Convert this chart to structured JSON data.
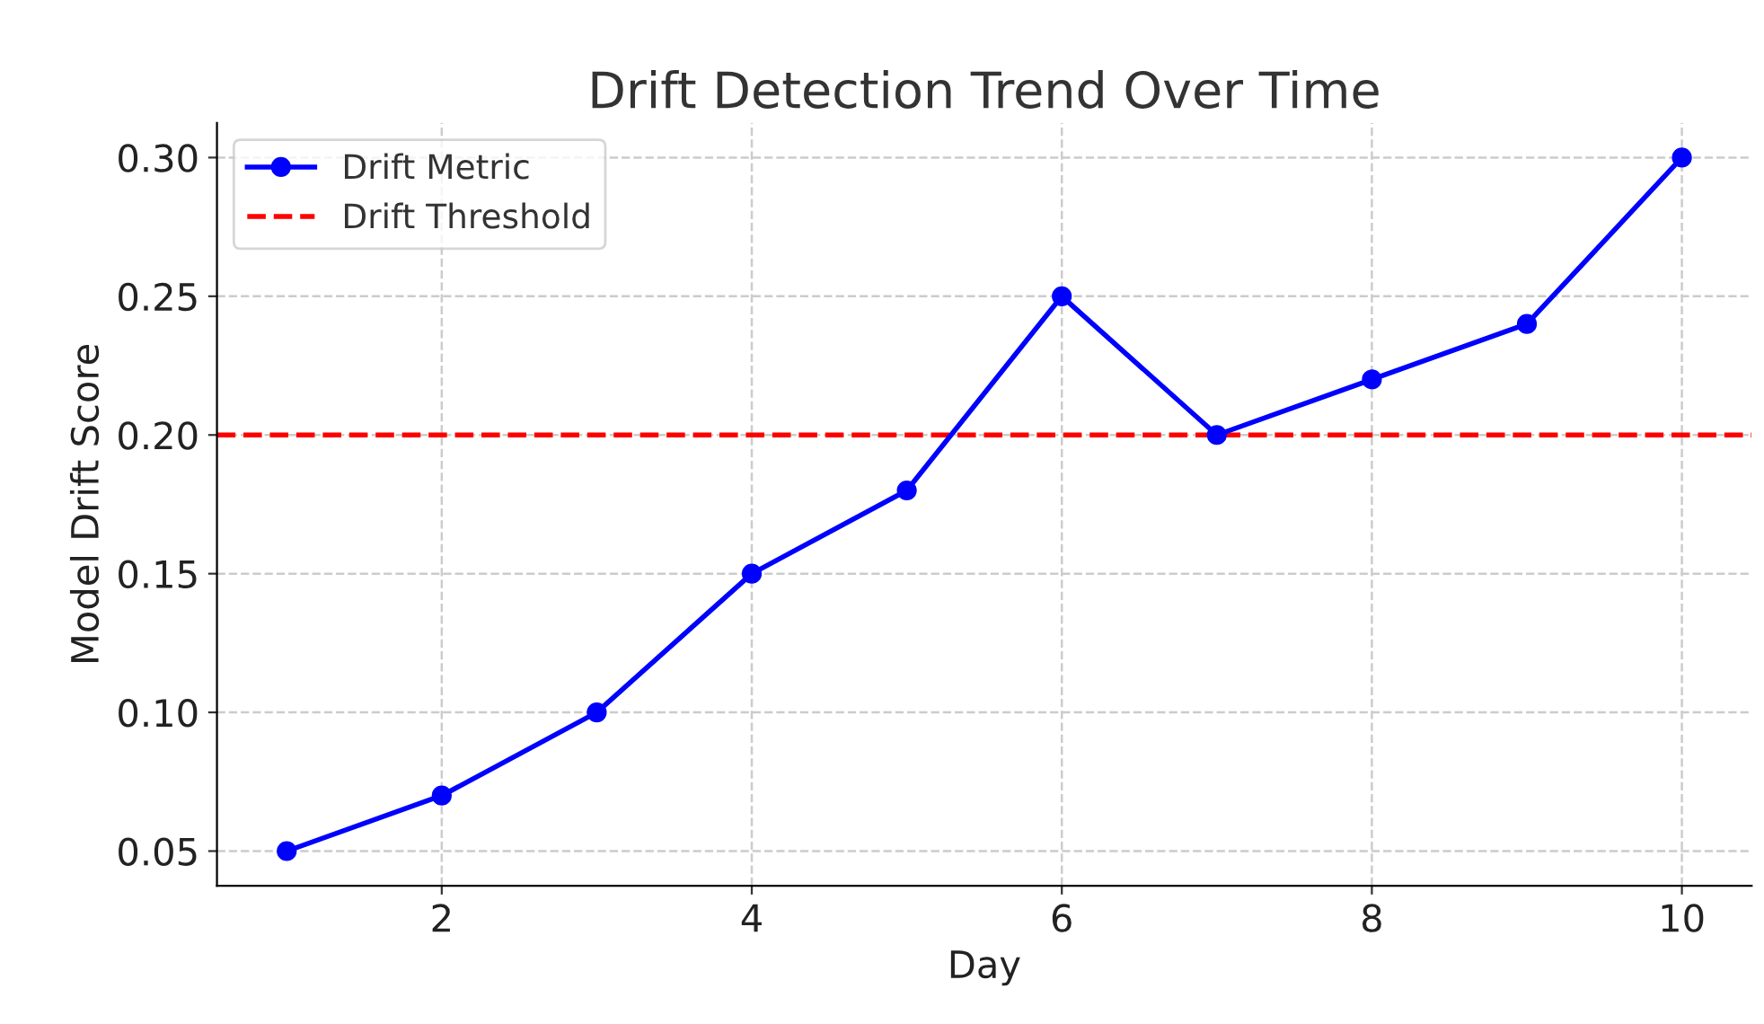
{
  "chart_data": {
    "type": "line",
    "title": "Drift Detection Trend Over Time",
    "xlabel": "Day",
    "ylabel": "Model Drift Score",
    "x": [
      1,
      2,
      3,
      4,
      5,
      6,
      7,
      8,
      9,
      10
    ],
    "series": [
      {
        "name": "Drift Metric",
        "color": "#0000ff",
        "values": [
          0.05,
          0.07,
          0.1,
          0.15,
          0.18,
          0.25,
          0.2,
          0.22,
          0.24,
          0.3
        ]
      }
    ],
    "ref_lines": [
      {
        "axis": "y",
        "value": 0.2,
        "label": "Drift Threshold",
        "color": "#ff0000",
        "line_style": "dashed"
      }
    ],
    "xlim": [
      0.55,
      10.45
    ],
    "ylim": [
      0.0375,
      0.3125
    ],
    "xticks": [
      2,
      4,
      6,
      8,
      10
    ],
    "yticks": [
      {
        "value": 0.05,
        "label": "0.05"
      },
      {
        "value": 0.1,
        "label": "0.10"
      },
      {
        "value": 0.15,
        "label": "0.15"
      },
      {
        "value": 0.2,
        "label": "0.20"
      },
      {
        "value": 0.25,
        "label": "0.25"
      },
      {
        "value": 0.3,
        "label": "0.30"
      }
    ],
    "grid": true,
    "legend": "top left",
    "marker": "circle",
    "line_style": "solid"
  }
}
